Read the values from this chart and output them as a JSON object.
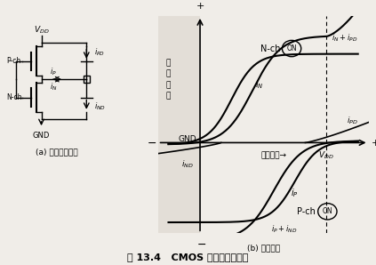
{
  "title": "图 13.4   CMOS 器件的输出特性",
  "subtitle_a": "(a) 输出等效电路",
  "subtitle_b": "(b) 输出特性",
  "bg_color": "#f0ede8",
  "panel_bg": "#e8e4de",
  "labels": {
    "y_axis_top": "+",
    "y_axis_bottom": "-",
    "x_axis_left": "-",
    "x_axis_right": "+",
    "y_label_chinese": "输\n出\n电\n流",
    "x_label": "输出电压→",
    "gnd": "GND",
    "vdd": "V",
    "vdd_sub": "DD",
    "n_ch_on": "N-ch",
    "n_ch_on_circle": "ON",
    "p_ch_on": "P-ch",
    "p_ch_on_circle": "ON",
    "i_N": "i",
    "i_N_sub": "N",
    "i_P": "i",
    "i_P_sub": "P",
    "i_ND": "i",
    "i_ND_sub": "ND",
    "i_PD": "i",
    "i_PD_sub": "PD",
    "i_N_iPD": "i",
    "i_N_iPD_sub": "N",
    "i_N_iPD2": "+i",
    "i_N_iPD_sub2": "PD",
    "i_P_iND": "i",
    "i_P_iND_sub": "P",
    "i_P_iND2": "+i",
    "i_P_iND_sub2": "ND"
  },
  "circuit_elements": {
    "vdd_label": "V",
    "vdd_sub": "DD",
    "p_ch": "P-ch",
    "n_ch": "N-ch",
    "gnd": "GND",
    "ip_label": "i",
    "ip_sub": "P",
    "in_label": "i",
    "in_sub": "N",
    "ipd_label": "i",
    "ipd_sub": "PD",
    "ind_label": "i",
    "ind_sub": "ND"
  }
}
